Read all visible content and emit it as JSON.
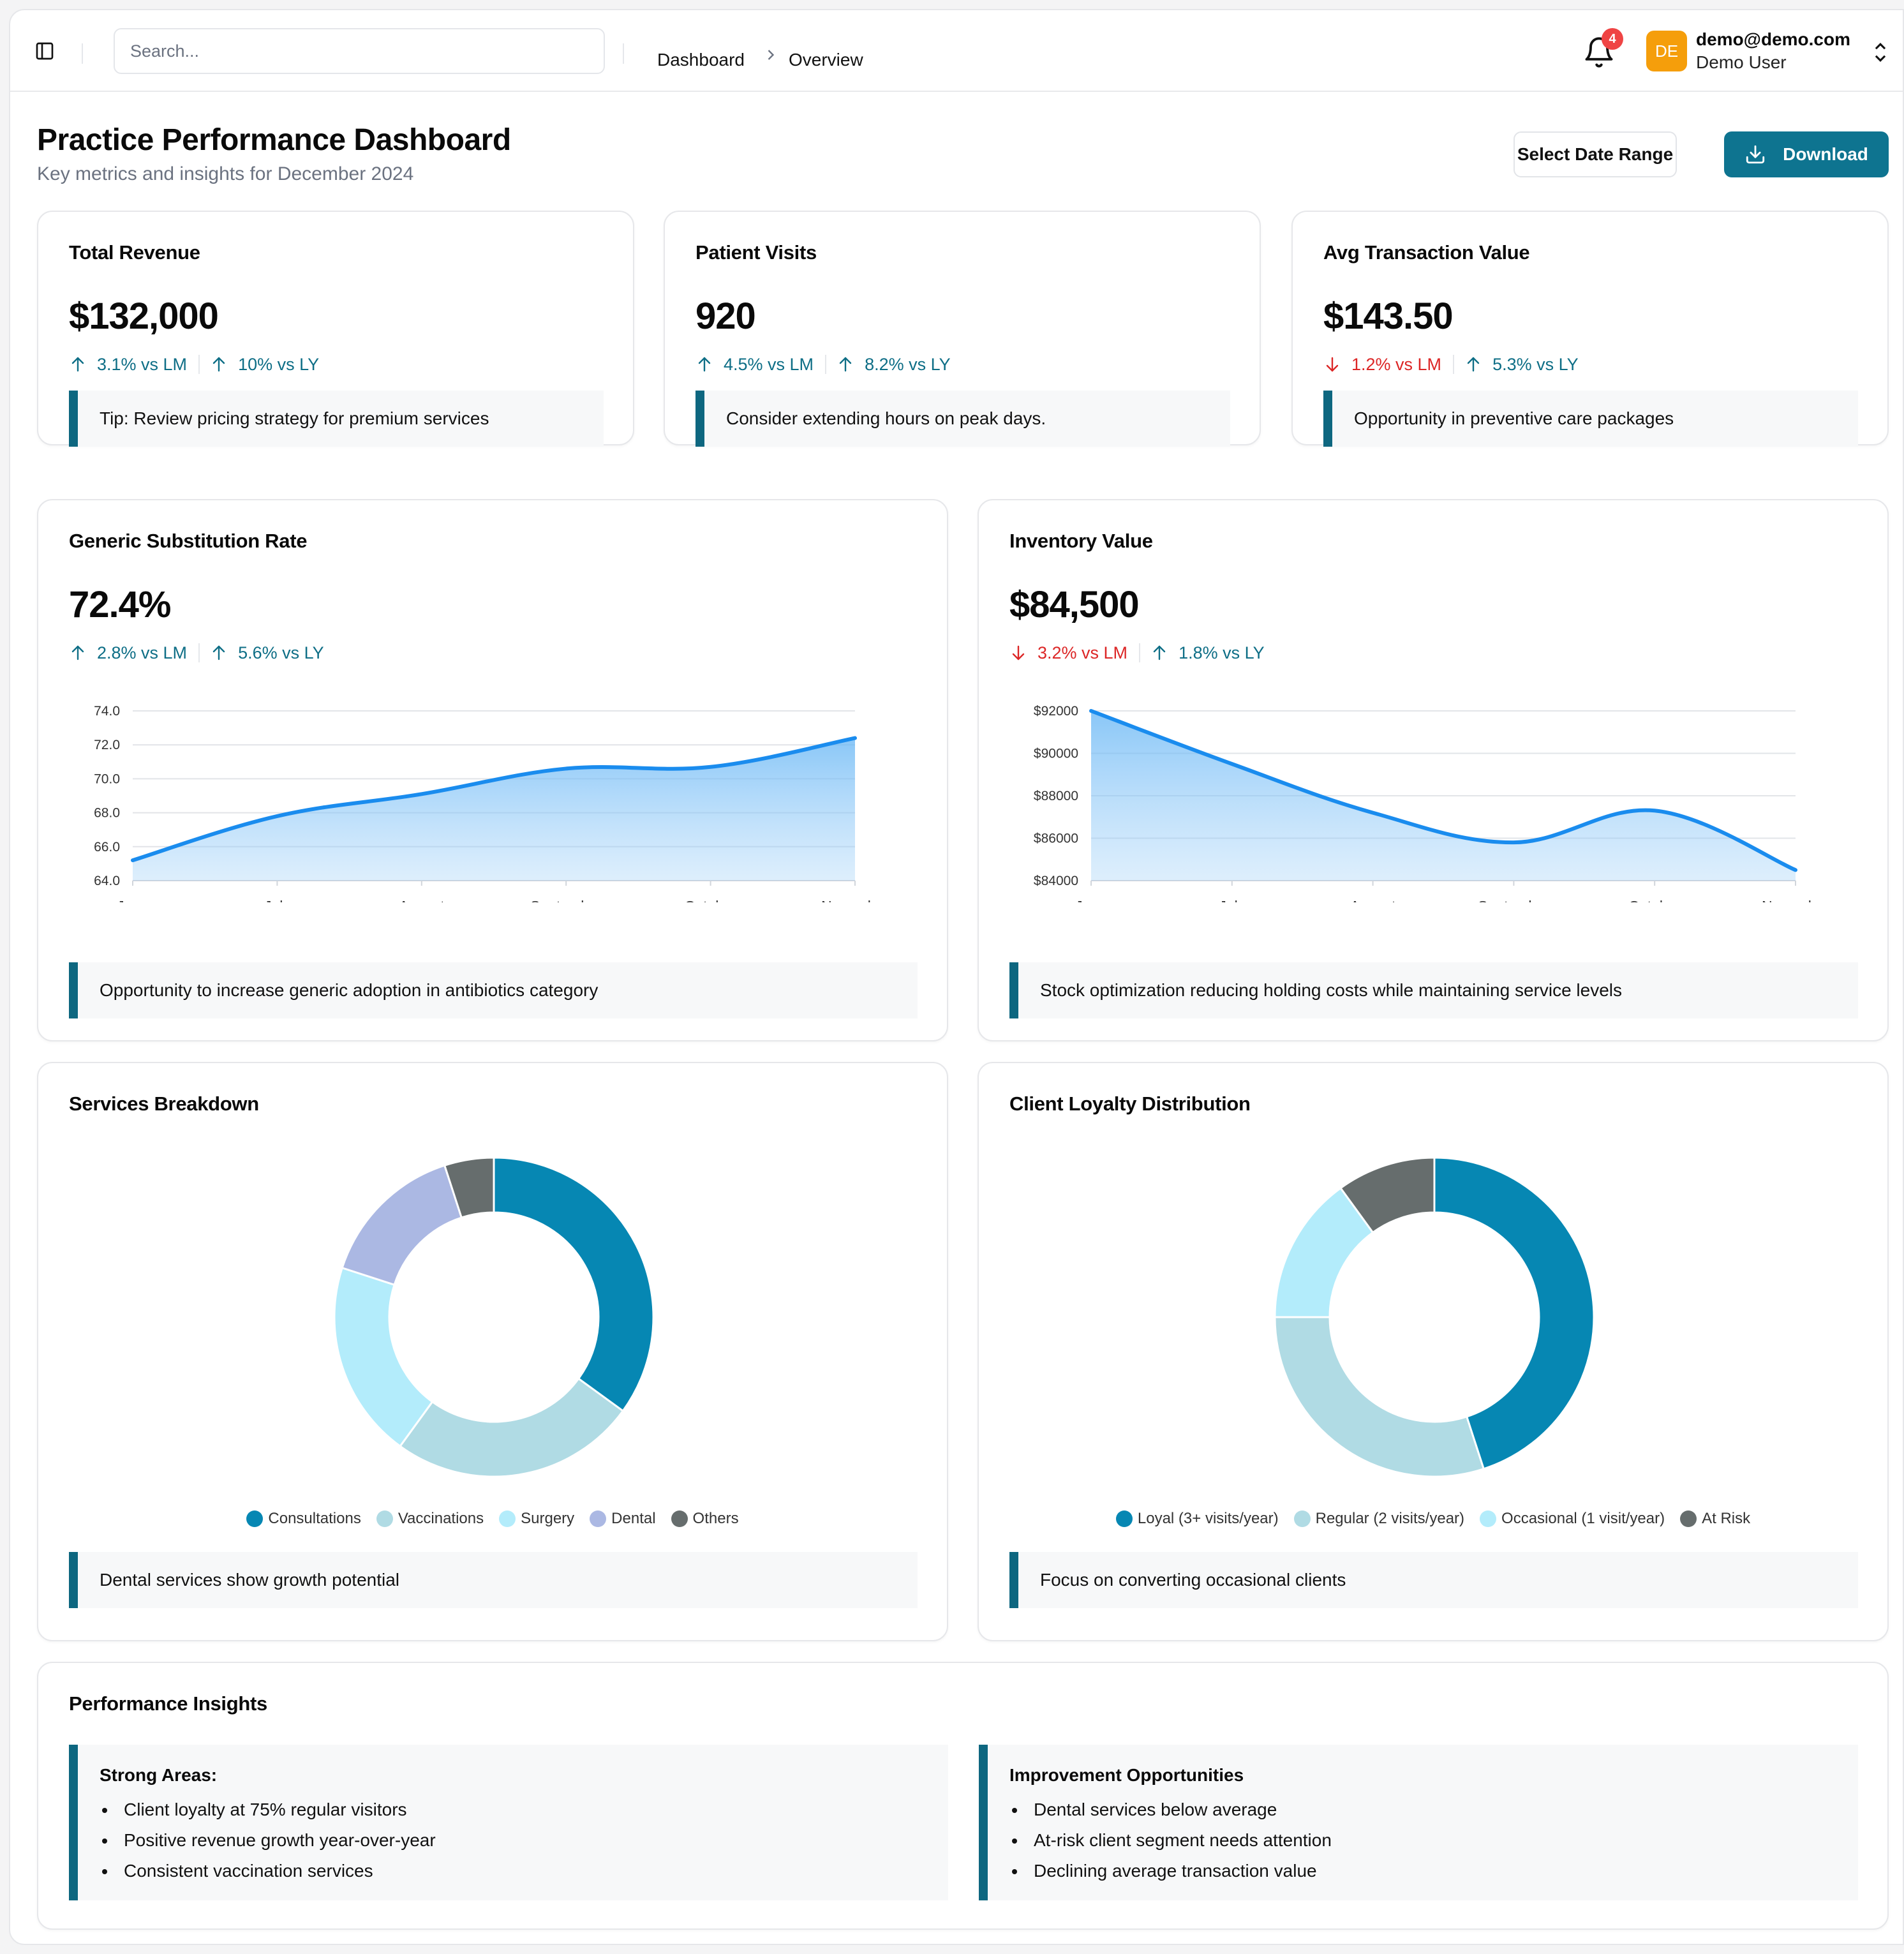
{
  "header": {
    "search_placeholder": "Search...",
    "breadcrumb": [
      "Dashboard",
      "Overview"
    ],
    "notification_count": "4",
    "user": {
      "initials": "DE",
      "email": "demo@demo.com",
      "name": "Demo User"
    }
  },
  "page": {
    "title": "Practice Performance Dashboard",
    "subtitle": "Key metrics and insights for December 2024",
    "select_range_label": "Select Date Range",
    "download_label": "Download"
  },
  "kpis": [
    {
      "title": "Total Revenue",
      "value": "$132,000",
      "trends": [
        {
          "dir": "up",
          "text": "3.1% vs LM"
        },
        {
          "dir": "up",
          "text": "10% vs LY"
        }
      ],
      "tip": "Tip: Review pricing strategy for premium services"
    },
    {
      "title": "Patient Visits",
      "value": "920",
      "trends": [
        {
          "dir": "up",
          "text": "4.5% vs LM"
        },
        {
          "dir": "up",
          "text": "8.2% vs LY"
        }
      ],
      "tip": "Consider extending hours on peak days."
    },
    {
      "title": "Avg Transaction Value",
      "value": "$143.50",
      "trends": [
        {
          "dir": "down",
          "text": "1.2% vs LM"
        },
        {
          "dir": "up",
          "text": "5.3% vs LY"
        }
      ],
      "tip": "Opportunity in preventive care packages"
    }
  ],
  "charts": {
    "generic": {
      "title": "Generic Substitution Rate",
      "value": "72.4%",
      "trends": [
        {
          "dir": "up",
          "text": "2.8% vs LM"
        },
        {
          "dir": "up",
          "text": "5.6% vs LY"
        }
      ],
      "tip": "Opportunity to increase generic adoption in antibiotics category"
    },
    "inventory": {
      "title": "Inventory Value",
      "value": "$84,500",
      "trends": [
        {
          "dir": "down",
          "text": "3.2% vs LM"
        },
        {
          "dir": "up",
          "text": "1.8% vs LY"
        }
      ],
      "tip": "Stock optimization reducing holding costs while maintaining service levels"
    },
    "services": {
      "title": "Services Breakdown",
      "tip": "Dental services show growth potential"
    },
    "loyalty": {
      "title": "Client Loyalty Distribution",
      "tip": "Focus on converting occasional clients"
    }
  },
  "chart_data": [
    {
      "type": "area",
      "categories": [
        "June",
        "July",
        "August",
        "September",
        "October",
        "November"
      ],
      "values": [
        65.2,
        67.8,
        69.1,
        70.6,
        70.7,
        72.4
      ],
      "ylim": [
        64,
        74
      ],
      "yticks": [
        "74.0",
        "72.0",
        "70.0",
        "68.0",
        "66.0",
        "64.0"
      ],
      "yticks_values": [
        74,
        72,
        70,
        68,
        66,
        64
      ],
      "grid": true,
      "color": "#1a8cee"
    },
    {
      "type": "area",
      "categories": [
        "June",
        "July",
        "August",
        "September",
        "October",
        "November"
      ],
      "values": [
        92000,
        89500,
        87200,
        85800,
        87300,
        84500
      ],
      "ylim": [
        84000,
        92000
      ],
      "yticks": [
        "$92000",
        "$90000",
        "$88000",
        "$86000",
        "$84000"
      ],
      "yticks_values": [
        92000,
        90000,
        88000,
        86000,
        84000
      ],
      "grid": true,
      "color": "#1a8cee"
    },
    {
      "type": "pie",
      "donut": true,
      "categories": [
        "Consultations",
        "Vaccinations",
        "Surgery",
        "Dental",
        "Others"
      ],
      "values": [
        35,
        25,
        20,
        15,
        5
      ],
      "colors": [
        "#0687b3",
        "#b0dbe4",
        "#b3ecfb",
        "#abb8e3",
        "#666d6d"
      ],
      "legend": "bottom"
    },
    {
      "type": "pie",
      "donut": true,
      "categories": [
        "Loyal (3+ visits/year)",
        "Regular (2 visits/year)",
        "Occasional (1 visit/year)",
        "At Risk"
      ],
      "values": [
        45,
        30,
        15,
        10
      ],
      "colors": [
        "#0687b3",
        "#b0dbe4",
        "#b3ecfb",
        "#666d6d"
      ],
      "legend": "bottom"
    }
  ],
  "insights": {
    "title": "Performance Insights",
    "strong": {
      "heading": "Strong Areas:",
      "items": [
        "Client loyalty at 75% regular visitors",
        "Positive revenue growth year-over-year",
        "Consistent vaccination services"
      ]
    },
    "improve": {
      "heading": "Improvement Opportunities",
      "items": [
        "Dental services below average",
        "At-risk client segment needs attention",
        "Declining average transaction value"
      ]
    }
  }
}
